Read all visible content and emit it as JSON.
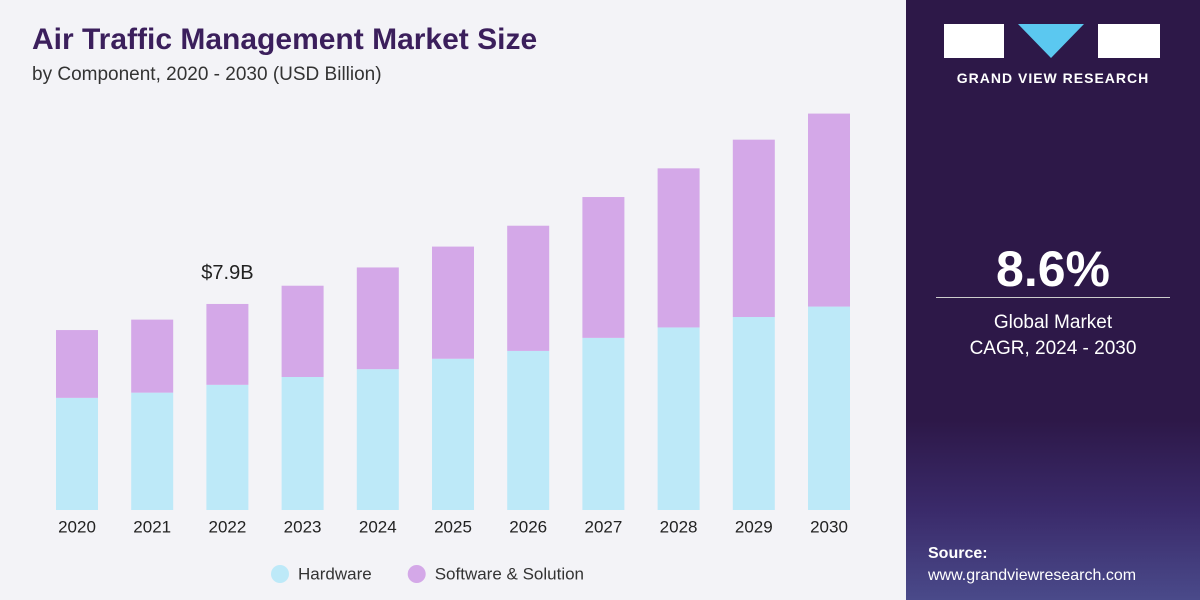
{
  "chart_data": {
    "type": "stacked_bar",
    "title": "Air Traffic Management Market Size",
    "subtitle": "by Component, 2020 - 2030 (USD Billion)",
    "annotation": "$7.9B",
    "categories": [
      "2020",
      "2021",
      "2022",
      "2023",
      "2024",
      "2025",
      "2026",
      "2027",
      "2028",
      "2029",
      "2030"
    ],
    "series": [
      {
        "name": "Hardware",
        "color": "#bde9f8",
        "values": [
          4.3,
          4.5,
          4.8,
          5.1,
          5.4,
          5.8,
          6.1,
          6.6,
          7.0,
          7.4,
          7.8
        ]
      },
      {
        "name": "Software & Solution",
        "color": "#d4a8e8",
        "values": [
          2.6,
          2.8,
          3.1,
          3.5,
          3.9,
          4.3,
          4.8,
          5.4,
          6.1,
          6.8,
          7.4
        ]
      }
    ]
  },
  "sidebar": {
    "brand": "GRAND VIEW RESEARCH",
    "cagr": "8.6%",
    "cagr_label": "Global Market CAGR, 2024 - 2030",
    "source_title": "Source:",
    "source_url": "www.grandviewresearch.com"
  }
}
